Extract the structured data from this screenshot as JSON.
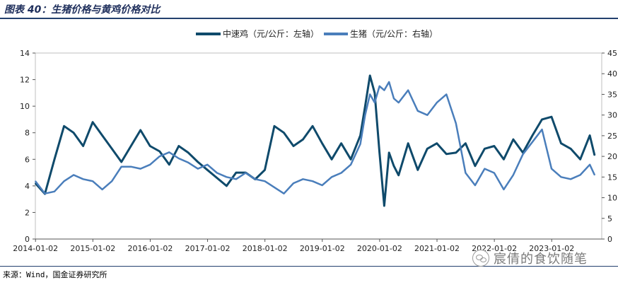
{
  "header": {
    "title": "图表 40：生猪价格与黄鸡价格对比"
  },
  "footer": {
    "source": "来源：Wind，国金证券研究所"
  },
  "watermark": {
    "text": "宸倩的食饮随笔",
    "icon": "wechat-icon"
  },
  "colors": {
    "chicken": "#0f4a6b",
    "pig": "#4a7ebb",
    "rule": "#23406e"
  },
  "chart_data": {
    "type": "line",
    "title": "",
    "x_ticks": [
      "2014-01-02",
      "2015-01-02",
      "2016-01-02",
      "2017-01-02",
      "2018-01-02",
      "2019-01-02",
      "2020-01-02",
      "2021-01-02",
      "2022-01-02",
      "2023-01-02"
    ],
    "y_left": {
      "lim": [
        0,
        14
      ],
      "ticks": [
        0,
        2,
        4,
        6,
        8,
        10,
        12,
        14
      ]
    },
    "y_right": {
      "lim": [
        0,
        45
      ],
      "ticks": [
        0,
        5,
        10,
        15,
        20,
        25,
        30,
        35,
        40,
        45
      ]
    },
    "legend_position": "top-center",
    "series": [
      {
        "name": "中速鸡（元/公斤：左轴）",
        "axis": "left",
        "x": [
          "2014-01",
          "2014-03",
          "2014-05",
          "2014-07",
          "2014-09",
          "2014-11",
          "2015-01",
          "2015-03",
          "2015-05",
          "2015-07",
          "2015-09",
          "2015-11",
          "2016-01",
          "2016-03",
          "2016-05",
          "2016-07",
          "2016-09",
          "2016-11",
          "2017-01",
          "2017-03",
          "2017-05",
          "2017-07",
          "2017-09",
          "2017-11",
          "2018-01",
          "2018-03",
          "2018-05",
          "2018-07",
          "2018-09",
          "2018-11",
          "2019-01",
          "2019-03",
          "2019-05",
          "2019-07",
          "2019-09",
          "2019-10",
          "2019-11",
          "2019-12",
          "2020-01",
          "2020-02",
          "2020-03",
          "2020-04",
          "2020-05",
          "2020-07",
          "2020-09",
          "2020-11",
          "2021-01",
          "2021-03",
          "2021-05",
          "2021-07",
          "2021-09",
          "2021-11",
          "2022-01",
          "2022-03",
          "2022-05",
          "2022-07",
          "2022-09",
          "2022-11",
          "2023-01",
          "2023-03",
          "2023-05",
          "2023-07",
          "2023-09",
          "2023-10"
        ],
        "values": [
          4.2,
          3.4,
          6.0,
          8.5,
          8.0,
          7.0,
          8.8,
          7.8,
          6.8,
          5.8,
          7.0,
          8.2,
          7.0,
          6.6,
          5.6,
          7.0,
          6.5,
          5.8,
          5.2,
          4.6,
          4.0,
          5.0,
          5.0,
          4.5,
          5.2,
          8.5,
          8.0,
          7.0,
          7.5,
          8.5,
          7.2,
          6.0,
          7.2,
          6.0,
          7.8,
          10.0,
          12.3,
          11.0,
          6.5,
          2.5,
          6.5,
          5.5,
          4.8,
          7.2,
          5.2,
          6.8,
          7.2,
          6.4,
          6.5,
          7.2,
          5.5,
          6.8,
          7.0,
          6.0,
          7.5,
          6.5,
          7.8,
          9.0,
          9.2,
          7.2,
          6.8,
          6.0,
          7.8,
          6.3
        ]
      },
      {
        "name": "生猪（元/公斤：右轴）",
        "axis": "right",
        "x": [
          "2014-01",
          "2014-03",
          "2014-05",
          "2014-07",
          "2014-09",
          "2014-11",
          "2015-01",
          "2015-03",
          "2015-05",
          "2015-07",
          "2015-09",
          "2015-11",
          "2016-01",
          "2016-03",
          "2016-05",
          "2016-07",
          "2016-09",
          "2016-11",
          "2017-01",
          "2017-03",
          "2017-05",
          "2017-07",
          "2017-09",
          "2017-11",
          "2018-01",
          "2018-03",
          "2018-05",
          "2018-07",
          "2018-09",
          "2018-11",
          "2019-01",
          "2019-03",
          "2019-05",
          "2019-07",
          "2019-09",
          "2019-10",
          "2019-11",
          "2019-12",
          "2020-01",
          "2020-02",
          "2020-03",
          "2020-04",
          "2020-05",
          "2020-07",
          "2020-09",
          "2020-11",
          "2021-01",
          "2021-03",
          "2021-05",
          "2021-07",
          "2021-09",
          "2021-11",
          "2022-01",
          "2022-03",
          "2022-05",
          "2022-07",
          "2022-09",
          "2022-11",
          "2023-01",
          "2023-03",
          "2023-05",
          "2023-07",
          "2023-09",
          "2023-10"
        ],
        "values": [
          14.0,
          11.0,
          11.5,
          14.0,
          15.5,
          14.5,
          14.0,
          12.0,
          14.0,
          17.5,
          17.5,
          17.0,
          18.0,
          20.0,
          21.0,
          19.5,
          18.5,
          17.0,
          18.0,
          16.0,
          15.0,
          14.5,
          16.0,
          14.5,
          14.0,
          12.5,
          11.0,
          13.5,
          14.5,
          14.0,
          13.0,
          15.0,
          16.0,
          18.0,
          23.0,
          30.0,
          35.0,
          33.0,
          37.0,
          36.0,
          38.0,
          34.0,
          33.0,
          36.0,
          31.0,
          30.0,
          33.0,
          35.0,
          28.0,
          16.0,
          13.0,
          17.0,
          16.0,
          12.0,
          15.5,
          20.5,
          23.5,
          26.5,
          17.0,
          15.0,
          14.5,
          15.5,
          18.0,
          15.5
        ]
      }
    ]
  }
}
